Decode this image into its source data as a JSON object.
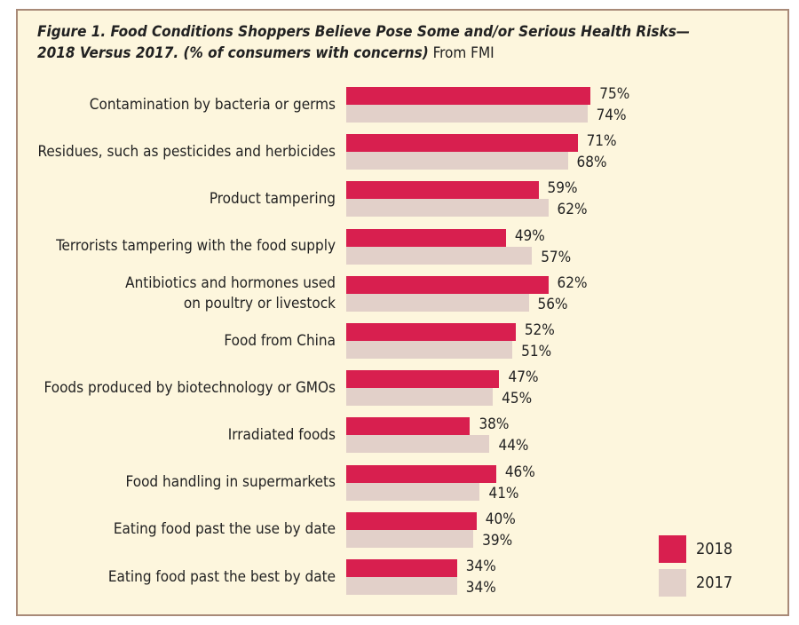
{
  "chart_data": {
    "type": "bar",
    "orientation": "horizontal",
    "title": "Figure 1. Food Conditions Shoppers Believe Pose Some and/or Serious Health Risks—2018 Versus 2017. (% of consumers with concerns)",
    "source": "From FMI",
    "categories": [
      "Contamination by bacteria or germs",
      "Residues, such as pesticides and herbicides",
      "Product tampering",
      "Terrorists tampering with the food supply",
      "Antibiotics and hormones used\non poultry or livestock",
      "Food from China",
      "Foods produced by biotechnology or GMOs",
      "Irradiated foods",
      "Food handling in supermarkets",
      "Eating food past the use by date",
      "Eating food past the best by date"
    ],
    "series": [
      {
        "name": "2018",
        "color": "#d81f4f",
        "values": [
          75,
          71,
          59,
          49,
          62,
          52,
          47,
          38,
          46,
          40,
          34
        ],
        "value_labels": [
          "75%",
          "71%",
          "59%",
          "49%",
          "62%",
          "52%",
          "47%",
          "38%",
          "46%",
          "40%",
          "34%"
        ]
      },
      {
        "name": "2017",
        "color": "#e2d0c9",
        "values": [
          74,
          68,
          62,
          57,
          56,
          51,
          45,
          44,
          41,
          39,
          34
        ],
        "value_labels": [
          "74%",
          "68%",
          "62%",
          "57%",
          "56%",
          "51%",
          "45%",
          "44%",
          "41%",
          "39%",
          "34%"
        ]
      }
    ],
    "xlim": [
      0,
      100
    ],
    "legend": "lower right"
  }
}
